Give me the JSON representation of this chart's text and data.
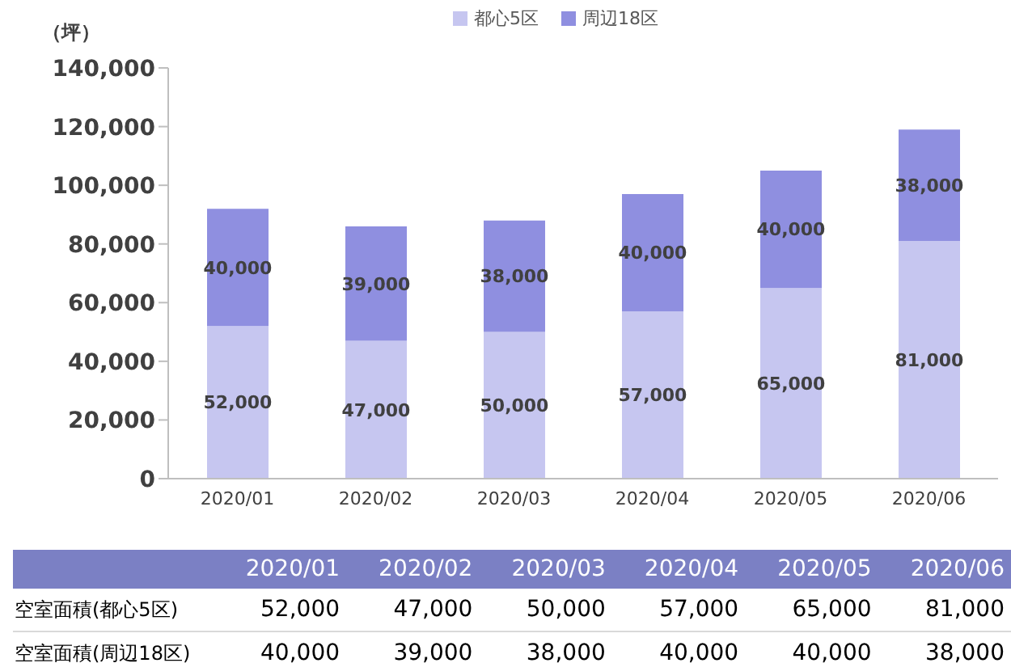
{
  "chart_data": {
    "type": "bar",
    "stacked": true,
    "ylabel": "（坪）",
    "categories": [
      "2020/01",
      "2020/02",
      "2020/03",
      "2020/04",
      "2020/05",
      "2020/06"
    ],
    "series": [
      {
        "name": "都心5区",
        "color": "#c6c6f0",
        "values": [
          52000,
          47000,
          50000,
          57000,
          65000,
          81000
        ],
        "value_labels": [
          "52,000",
          "47,000",
          "50,000",
          "57,000",
          "65,000",
          "81,000"
        ]
      },
      {
        "name": "周辺18区",
        "color": "#8f8fe0",
        "values": [
          40000,
          39000,
          38000,
          40000,
          40000,
          38000
        ],
        "value_labels": [
          "40,000",
          "39,000",
          "38,000",
          "40,000",
          "40,000",
          "38,000"
        ]
      }
    ],
    "ylim": [
      0,
      140000
    ],
    "yticks": [
      {
        "value": 0,
        "label": "0"
      },
      {
        "value": 20000,
        "label": "20,000"
      },
      {
        "value": 40000,
        "label": "40,000"
      },
      {
        "value": 60000,
        "label": "60,000"
      },
      {
        "value": 80000,
        "label": "80,000"
      },
      {
        "value": 100000,
        "label": "100,000"
      },
      {
        "value": 120000,
        "label": "120,000"
      },
      {
        "value": 140000,
        "label": "140,000"
      }
    ],
    "annotations": [
      "空室面積(都心5区)",
      "空室面積(周辺18区)"
    ],
    "legend": "top"
  }
}
